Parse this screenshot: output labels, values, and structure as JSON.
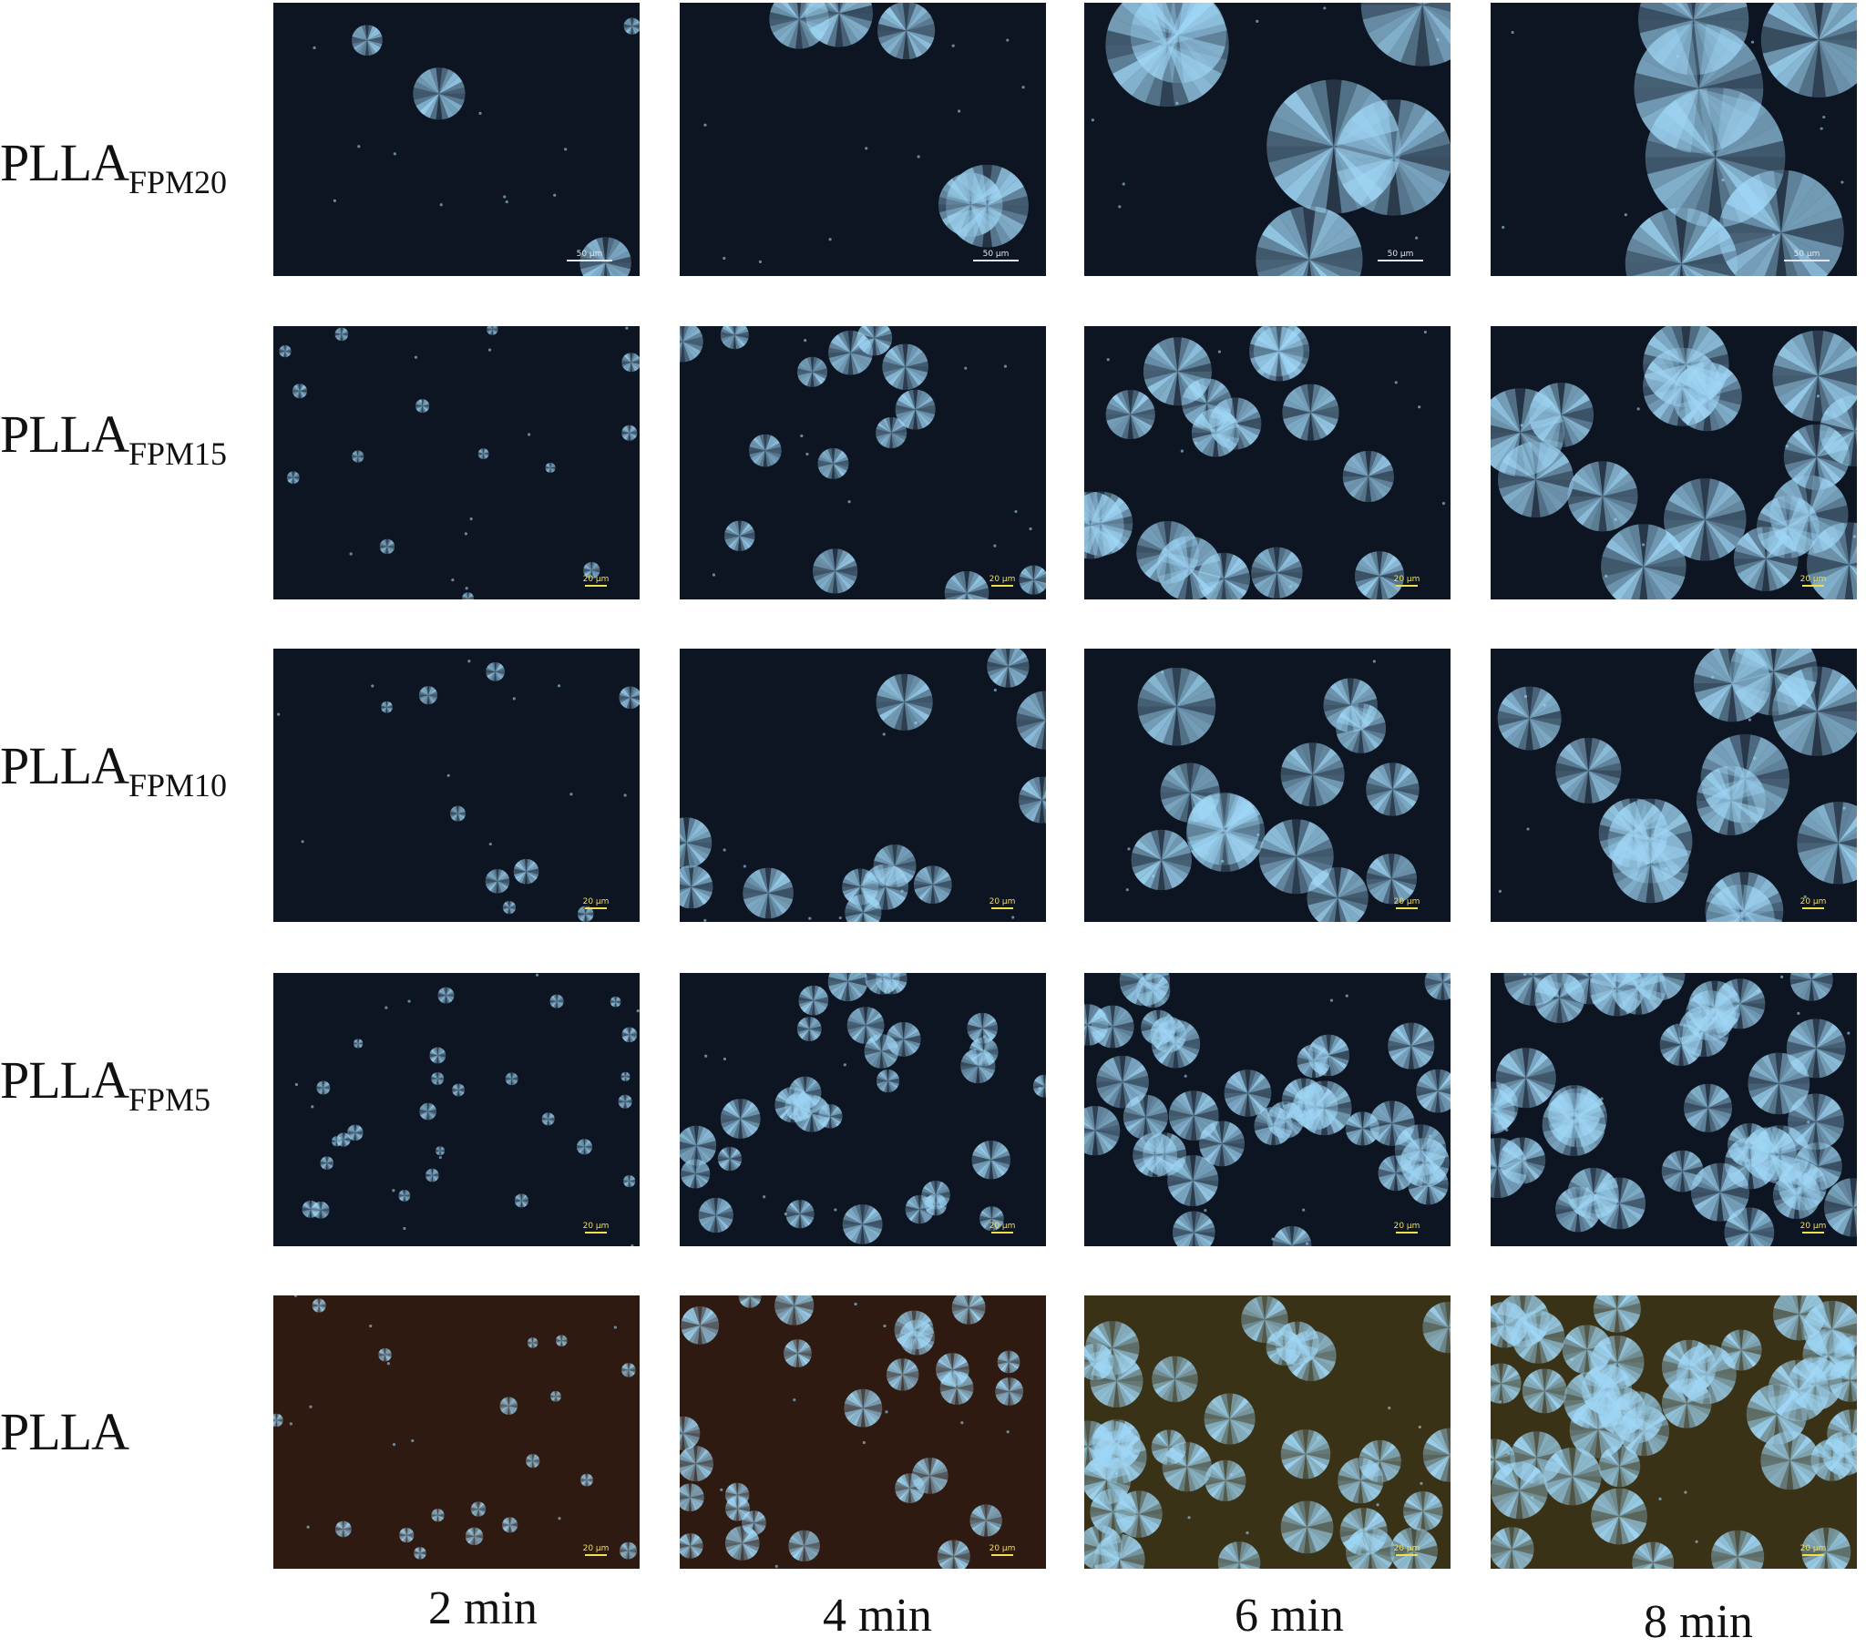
{
  "figure": {
    "rows": [
      {
        "base": "PLLA",
        "sub": "FPM20"
      },
      {
        "base": "PLLA",
        "sub": "FPM15"
      },
      {
        "base": "PLLA",
        "sub": "FPM10"
      },
      {
        "base": "PLLA",
        "sub": "FPM5"
      },
      {
        "base": "PLLA",
        "sub": ""
      }
    ],
    "columns": [
      "2 min",
      "4 min",
      "6 min",
      "8 min"
    ],
    "scale_bars": {
      "FPM20": "50 μm",
      "other": "20 μm"
    },
    "colors": {
      "background_blue": "#0d1422",
      "background_brown": "#2e1a10",
      "spherulite": "#9fd6f5",
      "scale_bar_yellow": "#f2e04a"
    }
  }
}
